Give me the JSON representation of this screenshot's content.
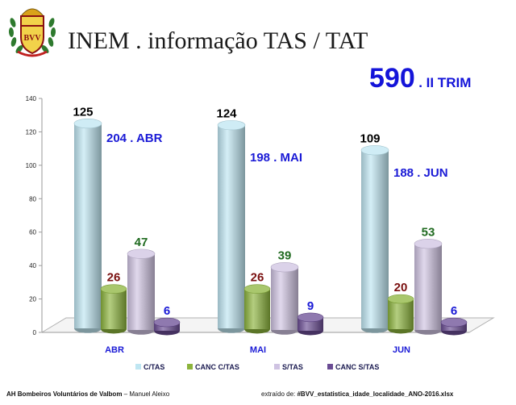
{
  "header": {
    "logo_text": "BVV",
    "title": "INEM . informação TAS / TAT",
    "total_value": "590",
    "total_suffix": ". II TRIM"
  },
  "footer": {
    "org": "AH Bombeiros Voluntários de Valbom",
    "separator": " – ",
    "author": "Manuel Aleixo",
    "source_prefix": "extraído de: ",
    "source_file": "#BVV_estatistica_idade_localidade_ANO-2016.xlsx"
  },
  "colors": {
    "c_tas": "#bfe6f2",
    "canc_c_tas": "#8cb43c",
    "s_tas": "#cfc3e2",
    "canc_s_tas": "#6a4c94",
    "month_total": "#1a1ad6",
    "label_dark": "#000000",
    "label_red": "#7a1010",
    "label_green": "#1f6a1f",
    "label_blue": "#1a1ad6"
  },
  "chart_data": {
    "type": "bar",
    "categories": [
      "ABR",
      "MAI",
      "JUN"
    ],
    "series": [
      {
        "name": "C/TAS",
        "values": [
          125,
          124,
          109
        ]
      },
      {
        "name": "CANC C/TAS",
        "values": [
          26,
          26,
          20
        ]
      },
      {
        "name": "S/TAS",
        "values": [
          47,
          39,
          53
        ]
      },
      {
        "name": "CANC S/TAS",
        "values": [
          6,
          9,
          6
        ]
      }
    ],
    "month_totals": [
      "204 . ABR",
      "198 . MAI",
      "188 . JUN"
    ],
    "ylim": [
      0,
      140
    ],
    "yticks": [
      0,
      20,
      40,
      60,
      80,
      100,
      120,
      140
    ],
    "legend_position": "bottom",
    "style": "3d-cylinder",
    "title": "",
    "xlabel": "",
    "ylabel": ""
  }
}
